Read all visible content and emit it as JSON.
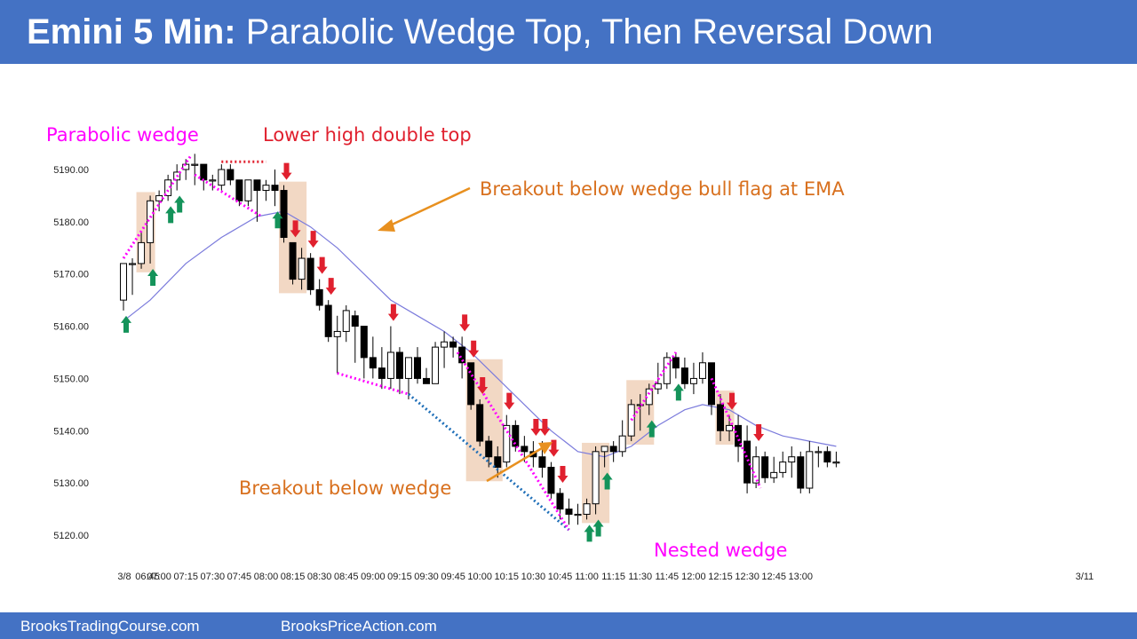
{
  "header": {
    "title_bold": "Emini 5 Min:",
    "title_rest": " Parabolic Wedge Top, Then Reversal Down"
  },
  "footer": {
    "left": "BrooksTradingCourse.com",
    "right": "BrooksPriceAction.com"
  },
  "colors": {
    "header_bg": "#4472c4",
    "magenta": "#ff00ff",
    "red": "#e0202e",
    "orange": "#e07b1a",
    "orange_text": "#d8701e",
    "blue": "#1f6fb8",
    "ema": "#7b7bdc",
    "green": "#14935a",
    "highlight": "#f2d8c4",
    "bear_body": "#000000",
    "bull_body": "#ffffff"
  },
  "annotations": {
    "parabolic_wedge": "Parabolic wedge",
    "lower_high": "Lower high double top",
    "breakout_bull_flag": "Breakout below wedge bull flag at EMA",
    "breakout_wedge": "Breakout below wedge",
    "nested_wedge": "Nested wedge"
  },
  "chart_data": {
    "type": "candlestick",
    "title": "Emini 5 Min: Parabolic Wedge Top, Then Reversal Down",
    "ylim": [
      5117,
      5193
    ],
    "yticks": [
      5120,
      5130,
      5140,
      5150,
      5160,
      5170,
      5180,
      5190
    ],
    "ytick_labels": [
      "5120.00",
      "5130.00",
      "5140.00",
      "5150.00",
      "5160.00",
      "5170.00",
      "5180.00",
      "5190.00"
    ],
    "xticks": [
      {
        "bar": 0,
        "label": "3/8"
      },
      {
        "bar": 1,
        "label": "06:45"
      },
      {
        "bar": 4,
        "label": "07:00"
      },
      {
        "bar": 7,
        "label": "07:15"
      },
      {
        "bar": 10,
        "label": "07:30"
      },
      {
        "bar": 13,
        "label": "07:45"
      },
      {
        "bar": 16,
        "label": "08:00"
      },
      {
        "bar": 19,
        "label": "08:15"
      },
      {
        "bar": 22,
        "label": "08:30"
      },
      {
        "bar": 25,
        "label": "08:45"
      },
      {
        "bar": 28,
        "label": "09:00"
      },
      {
        "bar": 31,
        "label": "09:15"
      },
      {
        "bar": 34,
        "label": "09:30"
      },
      {
        "bar": 37,
        "label": "09:45"
      },
      {
        "bar": 40,
        "label": "10:00"
      },
      {
        "bar": 43,
        "label": "10:15"
      },
      {
        "bar": 46,
        "label": "10:30"
      },
      {
        "bar": 49,
        "label": "10:45"
      },
      {
        "bar": 52,
        "label": "11:00"
      },
      {
        "bar": 55,
        "label": "11:15"
      },
      {
        "bar": 58,
        "label": "11:30"
      },
      {
        "bar": 61,
        "label": "11:45"
      },
      {
        "bar": 64,
        "label": "12:00"
      },
      {
        "bar": 67,
        "label": "12:15"
      },
      {
        "bar": 70,
        "label": "12:30"
      },
      {
        "bar": 73,
        "label": "12:45"
      },
      {
        "bar": 76,
        "label": "13:00"
      },
      {
        "bar": 80,
        "label": "3/11"
      }
    ],
    "bars": [
      [
        5165,
        5172,
        5163,
        5172
      ],
      [
        5172,
        5173,
        5166,
        5172
      ],
      [
        5172,
        5178,
        5171,
        5176
      ],
      [
        5176,
        5185,
        5172,
        5184
      ],
      [
        5184,
        5186,
        5182,
        5185
      ],
      [
        5185,
        5189,
        5184,
        5188
      ],
      [
        5188,
        5191,
        5186,
        5189.5
      ],
      [
        5190,
        5192,
        5188,
        5191
      ],
      [
        5191,
        5193,
        5187,
        5191
      ],
      [
        5191,
        5191,
        5186,
        5188
      ],
      [
        5188,
        5189,
        5186,
        5188
      ],
      [
        5187,
        5191,
        5186,
        5190
      ],
      [
        5190,
        5191,
        5187,
        5188
      ],
      [
        5188,
        5188,
        5183,
        5184
      ],
      [
        5184,
        5188,
        5183,
        5188
      ],
      [
        5188,
        5188,
        5180,
        5186
      ],
      [
        5186,
        5188,
        5184,
        5187
      ],
      [
        5187,
        5190,
        5183,
        5186
      ],
      [
        5186,
        5187,
        5176,
        5177
      ],
      [
        5176,
        5176,
        5168,
        5169
      ],
      [
        5169,
        5175,
        5167,
        5173
      ],
      [
        5173,
        5174,
        5166,
        5167
      ],
      [
        5167,
        5169,
        5163,
        5164
      ],
      [
        5164,
        5165,
        5157,
        5158
      ],
      [
        5158,
        5162,
        5151,
        5159
      ],
      [
        5159,
        5164,
        5157,
        5163
      ],
      [
        5162,
        5163,
        5153,
        5160
      ],
      [
        5160,
        5160,
        5150,
        5154
      ],
      [
        5154,
        5158,
        5150,
        5152
      ],
      [
        5152,
        5156,
        5148,
        5150
      ],
      [
        5150,
        5160,
        5148,
        5155
      ],
      [
        5155,
        5156,
        5147,
        5150
      ],
      [
        5150,
        5154,
        5146,
        5154
      ],
      [
        5154,
        5156,
        5149,
        5150
      ],
      [
        5150,
        5152,
        5149,
        5149
      ],
      [
        5149,
        5157,
        5149,
        5156
      ],
      [
        5156,
        5159,
        5152,
        5157
      ],
      [
        5157,
        5158,
        5154,
        5156
      ],
      [
        5156,
        5158,
        5150,
        5153
      ],
      [
        5153,
        5153,
        5144,
        5145
      ],
      [
        5145,
        5146,
        5137,
        5138
      ],
      [
        5138,
        5139,
        5133,
        5135
      ],
      [
        5135,
        5137,
        5131,
        5133
      ],
      [
        5134,
        5143,
        5133,
        5141
      ],
      [
        5141,
        5142,
        5136,
        5137
      ],
      [
        5137,
        5139,
        5134,
        5136
      ],
      [
        5136,
        5138,
        5133,
        5135
      ],
      [
        5135,
        5138,
        5131,
        5133
      ],
      [
        5133,
        5134,
        5127,
        5128
      ],
      [
        5128,
        5129,
        5123,
        5125
      ],
      [
        5125,
        5127,
        5122,
        5124
      ],
      [
        5124,
        5126,
        5122,
        5124
      ],
      [
        5124,
        5127,
        5123,
        5126
      ],
      [
        5126,
        5137,
        5124,
        5136
      ],
      [
        5136,
        5137,
        5133,
        5137
      ],
      [
        5137,
        5138,
        5134,
        5136
      ],
      [
        5136,
        5142,
        5135,
        5139
      ],
      [
        5139,
        5146,
        5138,
        5145
      ],
      [
        5145,
        5147,
        5140,
        5145
      ],
      [
        5145,
        5149,
        5143,
        5148
      ],
      [
        5148,
        5153,
        5147,
        5149
      ],
      [
        5149,
        5155,
        5148,
        5154
      ],
      [
        5154,
        5155,
        5150,
        5152
      ],
      [
        5152,
        5154,
        5148,
        5149
      ],
      [
        5149,
        5153,
        5147,
        5150
      ],
      [
        5150,
        5155,
        5149,
        5153
      ],
      [
        5153,
        5153,
        5143,
        5145
      ],
      [
        5145,
        5147,
        5138,
        5140
      ],
      [
        5140,
        5143,
        5138,
        5141
      ],
      [
        5141,
        5143,
        5134,
        5137
      ],
      [
        5138,
        5141,
        5128,
        5130
      ],
      [
        5130,
        5137,
        5129,
        5135
      ],
      [
        5135,
        5136,
        5130,
        5131
      ],
      [
        5131,
        5135,
        5130,
        5132
      ],
      [
        5132,
        5136,
        5131,
        5134
      ],
      [
        5134,
        5137,
        5131,
        5135
      ],
      [
        5135,
        5136,
        5128,
        5129
      ],
      [
        5129,
        5138,
        5128,
        5136
      ],
      [
        5136,
        5137,
        5133,
        5136
      ],
      [
        5136,
        5137,
        5133,
        5134
      ],
      [
        5134,
        5136,
        5133,
        5134
      ]
    ],
    "ema": [
      [
        0,
        5161
      ],
      [
        3,
        5165
      ],
      [
        7,
        5172
      ],
      [
        11,
        5177
      ],
      [
        15,
        5181
      ],
      [
        18,
        5182
      ],
      [
        21,
        5179
      ],
      [
        24,
        5175
      ],
      [
        27,
        5170
      ],
      [
        30,
        5165
      ],
      [
        33,
        5162
      ],
      [
        36,
        5159
      ],
      [
        39,
        5155
      ],
      [
        42,
        5150
      ],
      [
        45,
        5145
      ],
      [
        48,
        5140
      ],
      [
        51,
        5136
      ],
      [
        54,
        5135
      ],
      [
        57,
        5137
      ],
      [
        60,
        5141
      ],
      [
        63,
        5144
      ],
      [
        65,
        5145
      ],
      [
        68,
        5144
      ],
      [
        71,
        5141
      ],
      [
        74,
        5139
      ],
      [
        77,
        5138
      ],
      [
        80,
        5137
      ]
    ],
    "highlight_ranges": [
      [
        2,
        3
      ],
      [
        18,
        20
      ],
      [
        39,
        42
      ],
      [
        52,
        54
      ],
      [
        57,
        59
      ],
      [
        67,
        68
      ]
    ],
    "buy_arrows": [
      0,
      3,
      5,
      6,
      17,
      52,
      53,
      54,
      59,
      62
    ],
    "sell_arrows": [
      18,
      19,
      21,
      22,
      23,
      30,
      38,
      39,
      40,
      43,
      46,
      47,
      48,
      49,
      68,
      71
    ],
    "wedge_lines": [
      {
        "style": "magenta",
        "points": [
          [
            0,
            5173
          ],
          [
            7.5,
            5192.5
          ]
        ]
      },
      {
        "style": "red",
        "points": [
          [
            11,
            5191.5
          ],
          [
            16,
            5191.5
          ]
        ]
      },
      {
        "style": "magenta",
        "points": [
          [
            8,
            5189
          ],
          [
            15.5,
            5181
          ]
        ]
      },
      {
        "style": "magenta",
        "points": [
          [
            24,
            5151
          ],
          [
            32,
            5147
          ]
        ]
      },
      {
        "style": "blue",
        "points": [
          [
            32,
            5147
          ],
          [
            50,
            5121
          ]
        ]
      },
      {
        "style": "magenta",
        "points": [
          [
            37.5,
            5155
          ],
          [
            50,
            5121
          ]
        ]
      },
      {
        "style": "magenta",
        "points": [
          [
            57,
            5142
          ],
          [
            62,
            5155
          ]
        ]
      },
      {
        "style": "magenta",
        "points": [
          [
            66,
            5150
          ],
          [
            71.5,
            5129
          ]
        ]
      }
    ]
  }
}
